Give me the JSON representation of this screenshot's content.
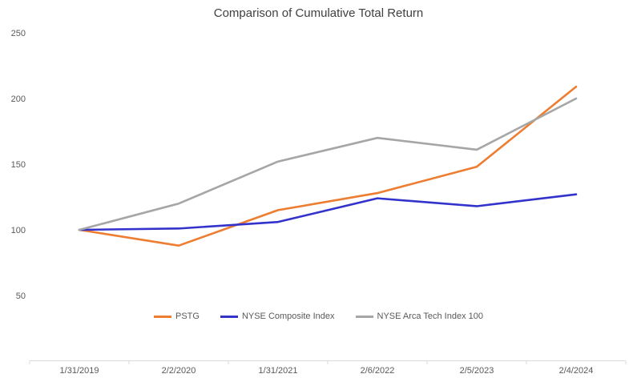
{
  "chart_data": {
    "type": "line",
    "title": "Comparison of Cumulative Total Return",
    "categories": [
      "1/31/2019",
      "2/2/2020",
      "1/31/2021",
      "2/6/2022",
      "2/5/2023",
      "2/4/2024"
    ],
    "series": [
      {
        "name": "PSTG",
        "color": "#ED7D31",
        "values": [
          100,
          88,
          115,
          128,
          148,
          209
        ]
      },
      {
        "name": "NYSE Composite Index",
        "color": "#3333CC",
        "values": [
          100,
          101,
          106,
          124,
          118,
          127
        ]
      },
      {
        "name": "NYSE Arca Tech Index 100",
        "color": "#A6A6A6",
        "values": [
          100,
          120,
          152,
          170,
          161,
          200
        ]
      }
    ],
    "xlabel": "",
    "ylabel": "",
    "ylim": [
      0,
      250
    ],
    "yticks": [
      50,
      100,
      150,
      200,
      250
    ],
    "grid": false,
    "legend_position": "bottom-center",
    "axis_color": "#D9D9D9",
    "label_color": "#595959",
    "title_color": "#404040"
  }
}
